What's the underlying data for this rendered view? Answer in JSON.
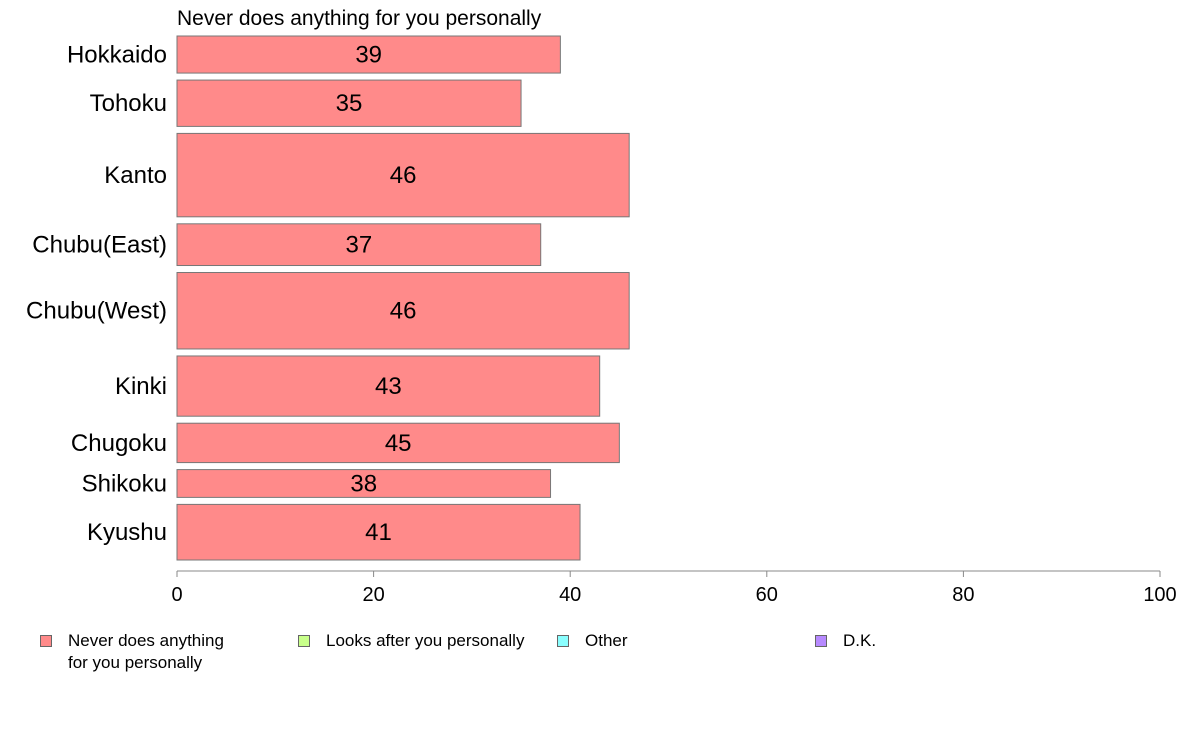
{
  "chart_data": {
    "type": "bar",
    "orientation": "horizontal",
    "title": "Never does anything for you personally",
    "categories": [
      "Hokkaido",
      "Tohoku",
      "Kanto",
      "Chubu(East)",
      "Chubu(West)",
      "Kinki",
      "Chugoku",
      "Shikoku",
      "Kyushu"
    ],
    "series": [
      {
        "name": "Never does anything for you personally",
        "values": [
          39,
          35,
          46,
          37,
          46,
          43,
          45,
          38,
          41
        ],
        "color": "#ff8a8a"
      }
    ],
    "data_labels": [
      "39",
      "35",
      "46",
      "37",
      "46",
      "43",
      "45",
      "38",
      "41"
    ],
    "category_weights": [
      0.8,
      1.0,
      1.8,
      0.9,
      1.65,
      1.3,
      0.85,
      0.6,
      1.2
    ],
    "xlim": [
      0,
      100
    ],
    "x_ticks": [
      0,
      20,
      40,
      60,
      80,
      100
    ],
    "grid": false,
    "legend_position": "bottom"
  },
  "legend": {
    "items": [
      {
        "label": "Never does anything\nfor you personally",
        "color": "#ff8a8a"
      },
      {
        "label": "Looks after you personally",
        "color": "#c8ff8a"
      },
      {
        "label": "Other",
        "color": "#8affff"
      },
      {
        "label": "D.K.",
        "color": "#b78aff"
      }
    ]
  }
}
